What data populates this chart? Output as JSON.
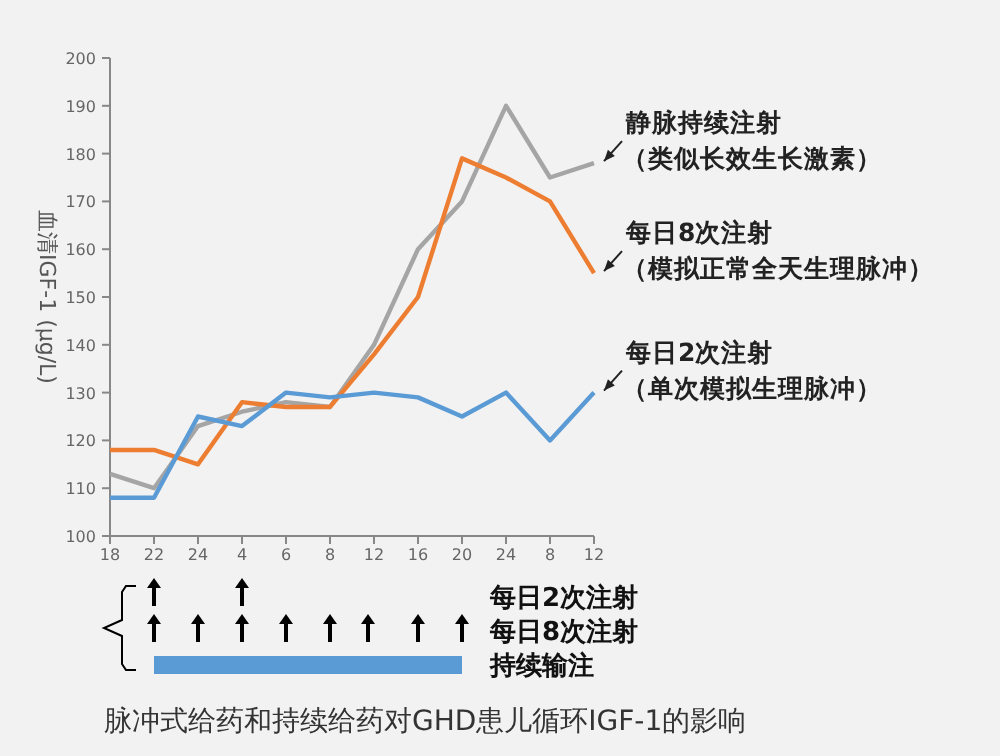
{
  "chart_data": {
    "type": "line",
    "title": "脉冲式给药和持续给药对GHD患儿循环IGF-1的影响",
    "ylabel": "血清IGF-1 (μg/L)",
    "categories": [
      "18",
      "22",
      "24",
      "4",
      "6",
      "8",
      "12",
      "16",
      "20",
      "24",
      "8",
      "12"
    ],
    "ylim": [
      100,
      200
    ],
    "yticks": [
      100,
      110,
      120,
      130,
      140,
      150,
      160,
      170,
      180,
      190,
      200
    ],
    "series": [
      {
        "name": "静脉持续注射",
        "color": "#a5a5a5",
        "values": [
          113,
          110,
          123,
          126,
          128,
          127,
          140,
          160,
          170,
          190,
          175,
          178
        ]
      },
      {
        "name": "每日8次注射",
        "color": "#ed7d31",
        "values": [
          118,
          118,
          115,
          128,
          127,
          127,
          138,
          150,
          179,
          175,
          170,
          155
        ]
      },
      {
        "name": "每日2次注射",
        "color": "#5b9bd5",
        "values": [
          108,
          108,
          125,
          123,
          130,
          129,
          130,
          129,
          125,
          130,
          120,
          130
        ]
      }
    ],
    "annotations": [
      "（类似长效生长激素）",
      "（模拟正常全天生理脉冲）",
      "（单次模拟生理脉冲）",
      "每日2次注射",
      "每日8次注射",
      "持续输注"
    ]
  }
}
